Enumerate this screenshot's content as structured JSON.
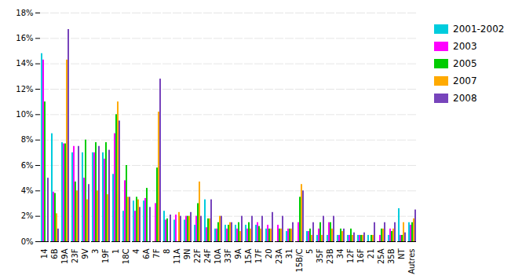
{
  "chart_data": {
    "type": "bar",
    "categories": [
      "14",
      "6B",
      "19A",
      "23F",
      "9V",
      "3",
      "19F",
      "1",
      "18C",
      "4",
      "6A",
      "7F",
      "8",
      "11A",
      "9N",
      "22F",
      "24F",
      "10A",
      "33F",
      "9A",
      "15A",
      "17F",
      "20",
      "23A",
      "31",
      "15B/C",
      "5",
      "35F",
      "23B",
      "34",
      "12F",
      "16F",
      "21",
      "25A",
      "35B",
      "NT",
      "Autres"
    ],
    "series": [
      {
        "name": "2001-2002",
        "color": "#00CCDD",
        "values": [
          14.8,
          8.5,
          7.8,
          7.0,
          7.0,
          7.0,
          7.0,
          5.3,
          2.4,
          3.2,
          3.2,
          0.0,
          2.4,
          1.7,
          1.7,
          1.3,
          3.3,
          1.0,
          1.3,
          1.3,
          1.3,
          1.3,
          1.0,
          0.0,
          0.8,
          0.0,
          0.8,
          0.5,
          0.5,
          0.5,
          0.5,
          0.5,
          0.5,
          0.0,
          0.5,
          2.6,
          1.5
        ]
      },
      {
        "name": "2003",
        "color": "#FF00FF",
        "values": [
          14.3,
          3.9,
          7.7,
          7.5,
          5.0,
          7.0,
          6.5,
          8.5,
          4.8,
          2.4,
          3.4,
          3.0,
          1.7,
          2.1,
          2.0,
          2.0,
          1.1,
          1.0,
          1.0,
          1.0,
          1.0,
          1.5,
          1.3,
          1.3,
          1.0,
          1.5,
          0.8,
          1.0,
          1.5,
          0.5,
          0.5,
          0.5,
          0.0,
          0.5,
          1.0,
          0.5,
          1.3
        ]
      },
      {
        "name": "2005",
        "color": "#00CC00",
        "values": [
          11.0,
          3.8,
          7.7,
          4.7,
          8.0,
          7.8,
          7.8,
          10.0,
          6.0,
          3.5,
          4.2,
          5.8,
          1.8,
          0.0,
          2.0,
          3.0,
          1.8,
          1.5,
          1.3,
          1.5,
          1.5,
          1.2,
          1.0,
          1.0,
          1.0,
          3.5,
          1.0,
          1.5,
          1.5,
          1.0,
          1.0,
          0.5,
          0.5,
          1.0,
          0.8,
          0.5,
          1.5
        ]
      },
      {
        "name": "2007",
        "color": "#FFAA00",
        "values": [
          0.0,
          2.2,
          14.3,
          4.0,
          3.3,
          4.0,
          3.7,
          11.0,
          3.5,
          3.3,
          0.0,
          10.2,
          0.0,
          2.3,
          2.0,
          4.7,
          1.8,
          2.0,
          1.5,
          0.8,
          1.0,
          1.0,
          1.0,
          1.0,
          1.0,
          4.5,
          0.5,
          0.5,
          1.0,
          0.8,
          0.5,
          0.5,
          0.5,
          1.0,
          1.0,
          1.5,
          1.8
        ]
      },
      {
        "name": "2008",
        "color": "#7744BB",
        "values": [
          5.0,
          1.0,
          16.7,
          7.5,
          4.5,
          7.5,
          7.2,
          9.5,
          3.5,
          2.7,
          2.7,
          12.8,
          2.1,
          2.0,
          2.3,
          2.0,
          3.3,
          2.0,
          1.5,
          2.0,
          2.0,
          2.0,
          2.3,
          2.0,
          1.5,
          4.0,
          1.5,
          2.0,
          2.0,
          1.0,
          0.7,
          0.7,
          1.5,
          1.5,
          1.5,
          0.7,
          2.5
        ]
      }
    ],
    "ylim": [
      0,
      18
    ],
    "yticks": [
      {
        "value": 0,
        "label": "0%"
      },
      {
        "value": 2,
        "label": "2%"
      },
      {
        "value": 4,
        "label": "4%"
      },
      {
        "value": 6,
        "label": "6%"
      },
      {
        "value": 8,
        "label": "8%"
      },
      {
        "value": 10,
        "label": "10%"
      },
      {
        "value": 12,
        "label": "12%"
      },
      {
        "value": 14,
        "label": "14%"
      },
      {
        "value": 16,
        "label": "16%"
      },
      {
        "value": 18,
        "label": "18%"
      }
    ],
    "grid": true,
    "legend": "right"
  }
}
